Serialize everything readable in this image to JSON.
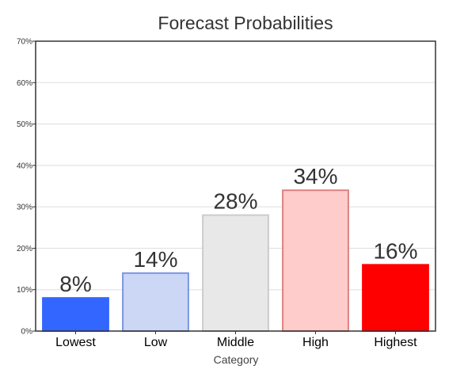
{
  "chart_data": {
    "type": "bar",
    "title": "Forecast Probabilities",
    "xlabel": "Category",
    "ylabel": "",
    "categories": [
      "Lowest",
      "Low",
      "Middle",
      "High",
      "Highest"
    ],
    "values": [
      8,
      14,
      28,
      34,
      16
    ],
    "data_labels": [
      "8%",
      "14%",
      "28%",
      "34%",
      "16%"
    ],
    "ylim": [
      0,
      70
    ],
    "yticks": [
      0,
      10,
      20,
      30,
      40,
      50,
      60,
      70
    ],
    "ytick_labels": [
      "0%",
      "10%",
      "20%",
      "30%",
      "40%",
      "50%",
      "60%",
      "70%"
    ],
    "grid": true,
    "legend": "none",
    "bar_fill_colors": [
      "#3366ff",
      "#ccd6f5",
      "#e8e8e8",
      "#ffcccc",
      "#ff0000"
    ],
    "bar_edge_colors": [
      "#3366ff",
      "#7a97e0",
      "#cccccc",
      "#e08080",
      "#ff0000"
    ],
    "grid_color": "#dddddd",
    "axis_color": "#333333"
  }
}
